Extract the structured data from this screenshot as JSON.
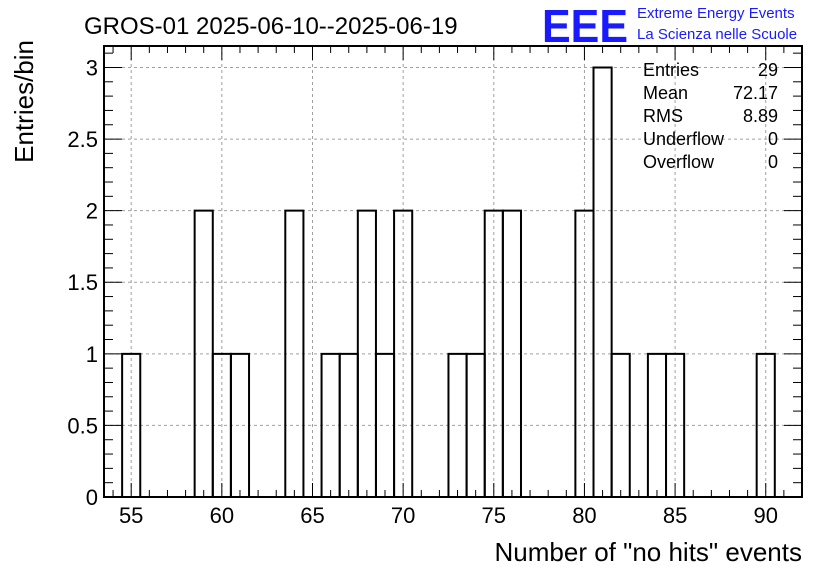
{
  "title": "GROS-01 2025-06-10--2025-06-19",
  "logo": {
    "mark": "EEE",
    "line1": "Extreme Energy Events",
    "line2": "La Scienza nelle Scuole"
  },
  "stats": {
    "rows": [
      {
        "label": "Entries",
        "value": "29"
      },
      {
        "label": "Mean",
        "value": "72.17"
      },
      {
        "label": "RMS",
        "value": "8.89"
      },
      {
        "label": "Underflow",
        "value": "0"
      },
      {
        "label": "Overflow",
        "value": "0"
      }
    ]
  },
  "chart_data": {
    "type": "bar",
    "histogram": true,
    "bin_width": 1,
    "xlabel": "Number of \"no hits\" events",
    "ylabel": "Entries/bin",
    "xlim": [
      53.5,
      92
    ],
    "ylim": [
      0,
      3.15
    ],
    "x_ticks": [
      55,
      60,
      65,
      70,
      75,
      80,
      85,
      90
    ],
    "y_ticks": [
      "0",
      "0.5",
      "1",
      "1.5",
      "2",
      "2.5",
      "3"
    ],
    "grid": true,
    "bins": [
      {
        "x": 55,
        "count": 1
      },
      {
        "x": 59,
        "count": 2
      },
      {
        "x": 60,
        "count": 1
      },
      {
        "x": 61,
        "count": 1
      },
      {
        "x": 64,
        "count": 2
      },
      {
        "x": 66,
        "count": 1
      },
      {
        "x": 67,
        "count": 1
      },
      {
        "x": 68,
        "count": 2
      },
      {
        "x": 69,
        "count": 1
      },
      {
        "x": 70,
        "count": 2
      },
      {
        "x": 73,
        "count": 1
      },
      {
        "x": 74,
        "count": 1
      },
      {
        "x": 75,
        "count": 2
      },
      {
        "x": 76,
        "count": 2
      },
      {
        "x": 80,
        "count": 2
      },
      {
        "x": 81,
        "count": 3
      },
      {
        "x": 82,
        "count": 1
      },
      {
        "x": 84,
        "count": 1
      },
      {
        "x": 85,
        "count": 1
      },
      {
        "x": 90,
        "count": 1
      }
    ]
  }
}
